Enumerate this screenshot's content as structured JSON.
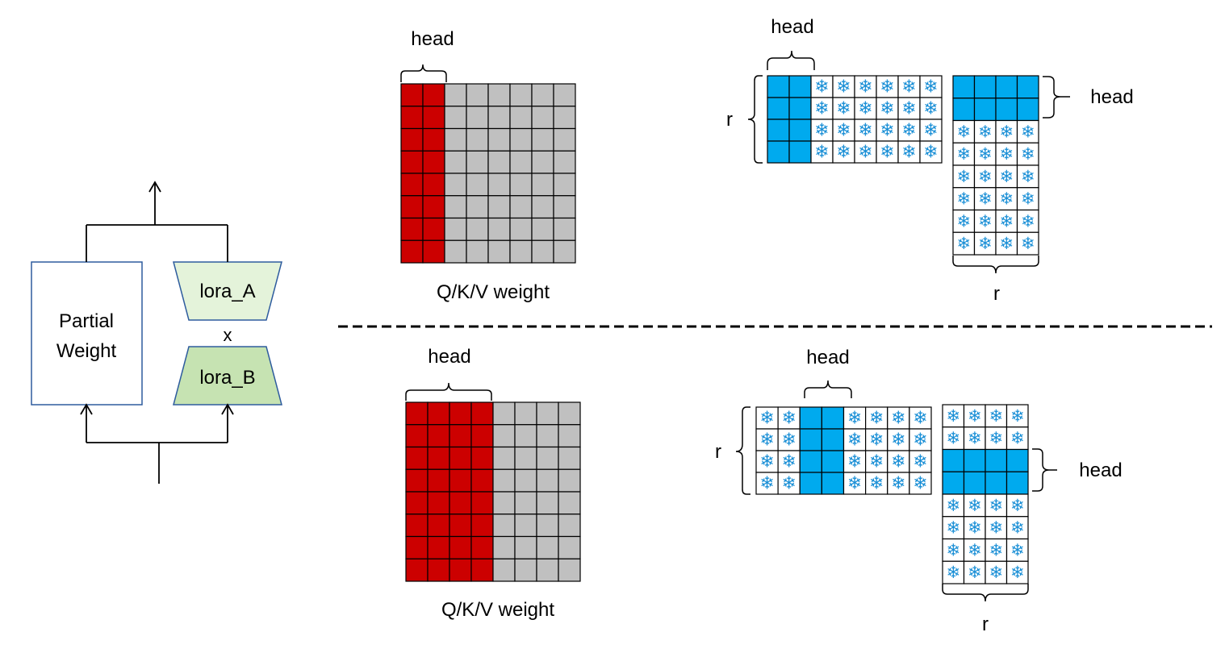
{
  "left_block": {
    "weight_label_line1": "Partial",
    "weight_label_line2": "Weight",
    "lora_a_label": "lora_A",
    "multiply_label": "x",
    "lora_b_label": "lora_B"
  },
  "top_panel": {
    "weight_head_label": "head",
    "weight_caption": "Q/K/V weight",
    "lora_a_head_label": "head",
    "lora_a_r_label": "r",
    "lora_b_head_label": "head",
    "lora_b_r_label": "r"
  },
  "bottom_panel": {
    "weight_head_label": "head",
    "weight_caption": "Q/K/V weight",
    "lora_a_head_label": "head",
    "lora_a_r_label": "r",
    "lora_b_head_label": "head",
    "lora_b_r_label": "r"
  },
  "icons": {
    "frozen_cell": "snowflake-icon",
    "frozen_glyph": "❄"
  },
  "colors": {
    "head_weight_cell": "#cc0000",
    "other_weight_cell": "#c0c0c0",
    "trainable_lora_cell": "#00aaee",
    "frozen_icon": "#1a8fd6",
    "box_border": "#2e5c9e",
    "lora_a_fill": "#e4f3da",
    "lora_b_fill": "#c6e3b2"
  }
}
